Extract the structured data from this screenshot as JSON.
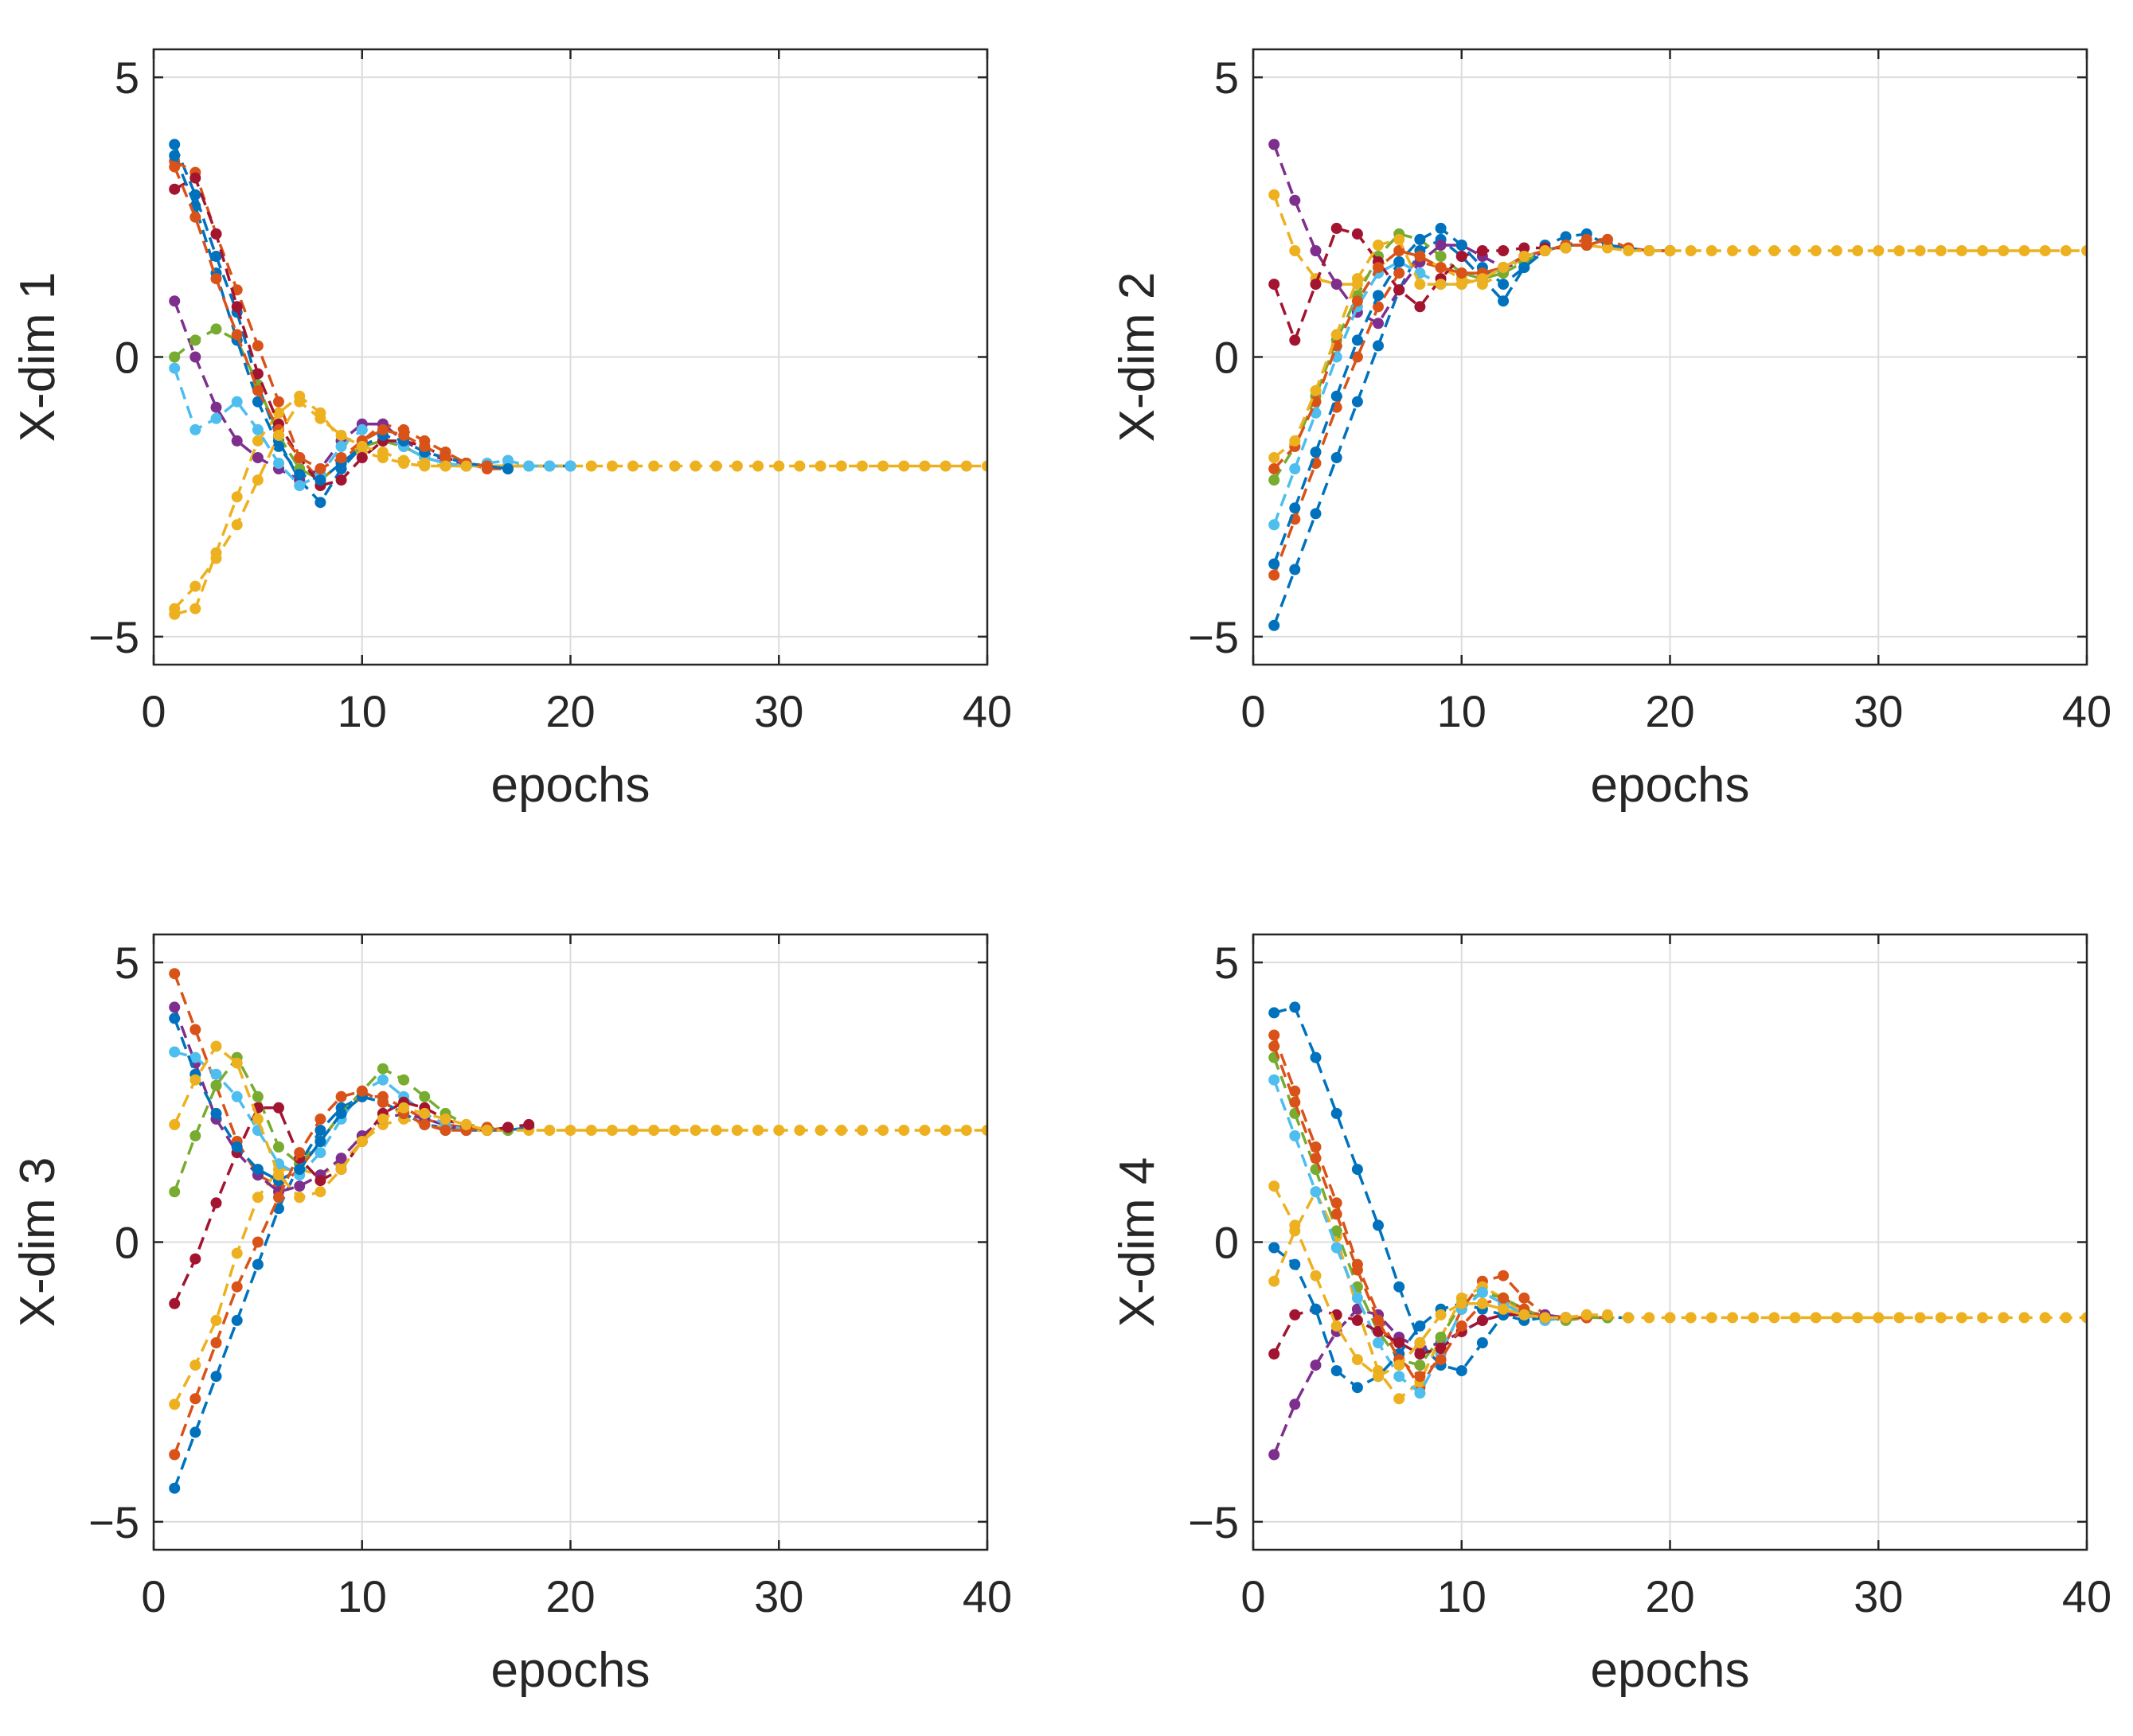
{
  "colors": {
    "axis": "#262626",
    "grid": "#dcdcdc",
    "series": [
      "#0072BD",
      "#D95319",
      "#EDB120",
      "#7E2F8E",
      "#77AC30",
      "#4DBEEE",
      "#A2142F",
      "#0072BD",
      "#D95319",
      "#EDB120"
    ]
  },
  "chart_data": [
    {
      "type": "line",
      "xlabel": "epochs",
      "ylabel": "X-dim 1",
      "xlim": [
        0,
        40
      ],
      "ylim": [
        -5.5,
        5.5
      ],
      "xticks": [
        0,
        10,
        20,
        30,
        40
      ],
      "yticks": [
        -5,
        0,
        5
      ],
      "ytick_labels": [
        "−5",
        "0",
        "5"
      ],
      "grid": true,
      "series": [
        {
          "values": [
            3.8,
            2.9,
            1.8,
            0.8,
            -0.5,
            -1.5,
            -2.2,
            -2.6,
            -2.0,
            -1.6,
            -1.5,
            -1.6,
            -1.8,
            -1.9,
            -1.95,
            -1.95,
            -1.95,
            -1.95,
            -1.95,
            -1.95
          ]
        },
        {
          "values": [
            3.5,
            3.3,
            2.2,
            1.2,
            0.2,
            -0.8,
            -1.8,
            -2.2,
            -1.9,
            -1.5,
            -1.2,
            -1.3,
            -1.5,
            -1.7,
            -1.9,
            -2.0,
            -2.0
          ]
        },
        {
          "values": [
            -4.6,
            -4.5,
            -3.5,
            -2.5,
            -1.5,
            -1.0,
            -0.7,
            -1.0,
            -1.5,
            -1.7,
            -1.8,
            -1.9,
            -1.95,
            -1.95,
            -1.95,
            -1.95,
            -1.95,
            -1.95,
            -1.95,
            -1.95,
            -1.95,
            -1.95,
            -1.95,
            -1.95,
            -1.95,
            -1.95,
            -1.95,
            -1.95,
            -1.95,
            -1.95,
            -1.95,
            -1.95,
            -1.95,
            -1.95,
            -1.95,
            -1.95,
            -1.95,
            -1.95,
            -1.95,
            -1.95
          ]
        },
        {
          "values": [
            1.0,
            0.0,
            -0.9,
            -1.5,
            -1.8,
            -2.0,
            -2.2,
            -2.0,
            -1.5,
            -1.2,
            -1.2,
            -1.5,
            -1.7,
            -1.85,
            -1.9,
            -1.95
          ]
        },
        {
          "values": [
            0.0,
            0.3,
            0.5,
            0.3,
            -0.5,
            -1.4,
            -2.0,
            -2.2,
            -1.9,
            -1.6,
            -1.5,
            -1.6,
            -1.8,
            -1.9,
            -1.95
          ]
        },
        {
          "values": [
            -0.2,
            -1.3,
            -1.1,
            -0.8,
            -1.3,
            -1.9,
            -2.3,
            -2.1,
            -1.6,
            -1.3,
            -1.4,
            -1.6,
            -1.8,
            -1.9,
            -1.95,
            -1.9,
            -1.85,
            -1.95,
            -1.95,
            -1.95
          ]
        },
        {
          "values": [
            3.0,
            3.2,
            2.2,
            0.9,
            -0.3,
            -1.2,
            -1.8,
            -2.3,
            -2.2,
            -1.8,
            -1.5,
            -1.5,
            -1.6,
            -1.8,
            -1.9
          ]
        },
        {
          "values": [
            3.6,
            2.7,
            1.5,
            0.3,
            -0.8,
            -1.6,
            -2.1,
            -2.2,
            -1.9,
            -1.6,
            -1.4,
            -1.5,
            -1.7,
            -1.8,
            -1.9,
            -1.95,
            -2.0
          ]
        },
        {
          "values": [
            3.4,
            2.5,
            1.4,
            0.4,
            -0.6,
            -1.3,
            -1.8,
            -2.0,
            -1.8,
            -1.5,
            -1.3,
            -1.4,
            -1.6,
            -1.8,
            -1.9,
            -1.95
          ]
        },
        {
          "values": [
            -4.5,
            -4.1,
            -3.6,
            -3.0,
            -2.2,
            -1.4,
            -0.8,
            -1.1,
            -1.4,
            -1.6,
            -1.7,
            -1.85,
            -1.9,
            -1.95,
            -1.95
          ]
        }
      ]
    },
    {
      "type": "line",
      "xlabel": "epochs",
      "ylabel": "X-dim 2",
      "xlim": [
        0,
        40
      ],
      "ylim": [
        -5.5,
        5.5
      ],
      "xticks": [
        0,
        10,
        20,
        30,
        40
      ],
      "yticks": [
        -5,
        0,
        5
      ],
      "ytick_labels": [
        "−5",
        "0",
        "5"
      ],
      "grid": true,
      "series": [
        {
          "values": [
            -4.8,
            -3.8,
            -2.8,
            -1.8,
            -0.8,
            0.2,
            1.2,
            1.9,
            2.1,
            1.8,
            1.4,
            1.0,
            1.6,
            2.0,
            2.15,
            2.2,
            2.0,
            1.95,
            1.9,
            1.9
          ]
        },
        {
          "values": [
            -3.9,
            -2.9,
            -1.9,
            -0.9,
            0.0,
            0.9,
            1.5,
            1.7,
            1.6,
            1.5,
            1.5,
            1.6,
            1.8,
            1.9,
            2.0,
            2.1,
            2.1,
            1.95,
            1.9,
            1.9
          ]
        },
        {
          "values": [
            2.9,
            1.9,
            1.4,
            1.3,
            1.3,
            1.6,
            1.9,
            1.8,
            1.6,
            1.4,
            1.3,
            1.5,
            1.8,
            1.9,
            2.0,
            2.0,
            1.95,
            1.9,
            1.9,
            1.9,
            1.9,
            1.9,
            1.9,
            1.9,
            1.9,
            1.9,
            1.9,
            1.9,
            1.9,
            1.9,
            1.9,
            1.9,
            1.9,
            1.9,
            1.9,
            1.9,
            1.9,
            1.9,
            1.9,
            1.9
          ]
        },
        {
          "values": [
            3.8,
            2.8,
            1.9,
            1.3,
            0.8,
            0.6,
            1.2,
            1.7,
            2.0,
            2.0,
            1.8,
            1.6,
            1.7,
            1.9,
            2.0,
            2.0
          ]
        },
        {
          "values": [
            -2.2,
            -1.6,
            -0.7,
            0.3,
            1.1,
            1.8,
            2.2,
            2.1,
            1.8,
            1.5,
            1.4,
            1.5,
            1.7,
            1.9,
            2.0
          ]
        },
        {
          "values": [
            -3.0,
            -2.0,
            -1.0,
            0.0,
            0.9,
            1.5,
            1.7,
            1.5,
            1.3,
            1.3,
            1.4,
            1.6,
            1.8,
            1.9,
            2.0
          ]
        },
        {
          "values": [
            1.3,
            0.3,
            1.3,
            2.3,
            2.2,
            1.7,
            1.2,
            0.9,
            1.4,
            1.8,
            1.9,
            1.9,
            1.95,
            1.95,
            1.95
          ]
        },
        {
          "values": [
            -3.7,
            -2.7,
            -1.7,
            -0.7,
            0.3,
            1.1,
            1.7,
            2.1,
            2.3,
            2.0,
            1.6,
            1.3,
            1.6,
            1.9,
            2.0,
            2.0
          ]
        },
        {
          "values": [
            -2.0,
            -1.6,
            -0.8,
            0.2,
            1.0,
            1.6,
            1.9,
            1.8,
            1.6,
            1.5,
            1.5,
            1.6,
            1.8,
            1.9,
            2.0,
            2.0,
            2.1
          ]
        },
        {
          "values": [
            -1.8,
            -1.5,
            -0.6,
            0.4,
            1.4,
            2.0,
            2.1,
            1.3,
            1.3,
            1.3,
            1.4,
            1.6,
            1.8,
            1.9,
            1.95
          ]
        }
      ]
    },
    {
      "type": "line",
      "xlabel": "epochs",
      "ylabel": "X-dim 3",
      "xlim": [
        0,
        40
      ],
      "ylim": [
        -5.5,
        5.5
      ],
      "xticks": [
        0,
        10,
        20,
        30,
        40
      ],
      "yticks": [
        -5,
        0,
        5
      ],
      "ytick_labels": [
        "−5",
        "0",
        "5"
      ],
      "grid": true,
      "series": [
        {
          "values": [
            -4.4,
            -3.4,
            -2.4,
            -1.4,
            -0.4,
            0.6,
            1.4,
            2.0,
            2.4,
            2.6,
            2.5,
            2.3,
            2.1,
            2.05,
            2.0,
            2.0,
            2.0,
            2.05
          ]
        },
        {
          "values": [
            4.8,
            3.8,
            2.8,
            1.8,
            1.2,
            1.0,
            1.3,
            1.8,
            2.3,
            2.6,
            2.6,
            2.4,
            2.2,
            2.1,
            2.05,
            2.0,
            2.05
          ]
        },
        {
          "values": [
            -2.9,
            -2.2,
            -1.4,
            -0.2,
            0.8,
            1.3,
            1.3,
            1.2,
            1.4,
            1.8,
            2.1,
            2.2,
            2.1,
            2.05,
            2.0,
            2.0,
            2.0,
            2.0,
            2.0,
            2.0,
            2.0,
            2.0,
            2.0,
            2.0,
            2.0,
            2.0,
            2.0,
            2.0,
            2.0,
            2.0,
            2.0,
            2.0,
            2.0,
            2.0,
            2.0,
            2.0,
            2.0,
            2.0,
            2.0,
            2.0
          ]
        },
        {
          "values": [
            4.2,
            3.2,
            2.2,
            1.6,
            1.2,
            0.9,
            1.0,
            1.2,
            1.5,
            1.9,
            2.2,
            2.3,
            2.2,
            2.1,
            2.0
          ]
        },
        {
          "values": [
            0.9,
            1.9,
            2.8,
            3.3,
            2.6,
            1.7,
            1.4,
            1.8,
            2.3,
            2.7,
            3.1,
            2.9,
            2.6,
            2.3,
            2.1,
            2.05,
            2.0
          ]
        },
        {
          "values": [
            3.4,
            3.3,
            3.0,
            2.6,
            2.0,
            1.4,
            1.2,
            1.6,
            2.2,
            2.7,
            2.9,
            2.6,
            2.3,
            2.1,
            2.0
          ]
        },
        {
          "values": [
            -1.1,
            -0.3,
            0.7,
            1.6,
            2.4,
            2.4,
            1.5,
            1.1,
            1.3,
            1.8,
            2.3,
            2.5,
            2.4,
            2.2,
            2.05,
            2.0,
            2.05,
            2.1
          ]
        },
        {
          "values": [
            4.0,
            3.0,
            2.3,
            1.7,
            1.3,
            1.1,
            1.3,
            1.8,
            2.3,
            2.6,
            2.5,
            2.3,
            2.1,
            2.0
          ]
        },
        {
          "values": [
            -3.8,
            -2.8,
            -1.8,
            -0.8,
            0.0,
            0.8,
            1.6,
            2.2,
            2.6,
            2.7,
            2.5,
            2.3,
            2.1,
            2.0,
            2.0,
            2.05
          ]
        },
        {
          "values": [
            2.1,
            2.9,
            3.5,
            3.2,
            2.2,
            1.2,
            0.8,
            0.9,
            1.3,
            1.8,
            2.2,
            2.4,
            2.3,
            2.2,
            2.1,
            2.0
          ]
        }
      ]
    },
    {
      "type": "line",
      "xlabel": "epochs",
      "ylabel": "X-dim 4",
      "xlim": [
        0,
        40
      ],
      "ylim": [
        -5.5,
        5.5
      ],
      "xticks": [
        0,
        10,
        20,
        30,
        40
      ],
      "yticks": [
        -5,
        0,
        5
      ],
      "ytick_labels": [
        "−5",
        "0",
        "5"
      ],
      "grid": true,
      "series": [
        {
          "values": [
            4.1,
            4.2,
            3.3,
            2.3,
            1.3,
            0.3,
            -0.8,
            -1.8,
            -2.2,
            -2.3,
            -1.8,
            -1.3,
            -1.3,
            -1.35,
            -1.35,
            -1.35,
            -1.35,
            -1.35
          ]
        },
        {
          "values": [
            3.7,
            2.7,
            1.7,
            0.7,
            -0.4,
            -1.3,
            -2.0,
            -2.6,
            -2.0,
            -1.2,
            -0.7,
            -0.6,
            -1.0,
            -1.3,
            -1.35,
            -1.35,
            -1.35
          ]
        },
        {
          "values": [
            -0.7,
            0.2,
            0.9,
            0.1,
            -1.2,
            -2.3,
            -2.8,
            -2.5,
            -1.7,
            -1.0,
            -0.8,
            -1.0,
            -1.3,
            -1.4,
            -1.35,
            -1.3,
            -1.35,
            -1.35,
            -1.35,
            -1.35,
            -1.35,
            -1.35,
            -1.35,
            -1.35,
            -1.35,
            -1.35,
            -1.35,
            -1.35,
            -1.35,
            -1.35,
            -1.35,
            -1.35,
            -1.35,
            -1.35,
            -1.35,
            -1.35,
            -1.35,
            -1.35,
            -1.35,
            -1.35
          ]
        },
        {
          "values": [
            -3.8,
            -2.9,
            -2.2,
            -1.6,
            -1.2,
            -1.3,
            -1.7,
            -1.9,
            -1.8,
            -1.6,
            -1.4,
            -1.3,
            -1.25,
            -1.3,
            -1.35,
            -1.35
          ]
        },
        {
          "values": [
            3.3,
            2.3,
            1.3,
            0.2,
            -0.8,
            -1.6,
            -2.1,
            -2.2,
            -1.7,
            -1.1,
            -0.9,
            -1.0,
            -1.2,
            -1.35,
            -1.4,
            -1.35,
            -1.35
          ]
        },
        {
          "values": [
            2.9,
            1.9,
            0.9,
            -0.1,
            -1.0,
            -1.8,
            -2.4,
            -2.7,
            -2.0,
            -1.2,
            -0.9,
            -1.1,
            -1.3,
            -1.4,
            -1.35
          ]
        },
        {
          "values": [
            -2.0,
            -1.3,
            -1.2,
            -1.3,
            -1.4,
            -1.6,
            -1.8,
            -2.0,
            -1.9,
            -1.6,
            -1.4,
            -1.3,
            -1.3,
            -1.35,
            -1.35
          ]
        },
        {
          "values": [
            -0.1,
            -0.4,
            -1.2,
            -2.3,
            -2.6,
            -2.4,
            -2.0,
            -1.5,
            -1.2,
            -1.1,
            -1.2,
            -1.3,
            -1.4,
            -1.35,
            -1.35
          ]
        },
        {
          "values": [
            3.5,
            2.5,
            1.5,
            0.5,
            -0.5,
            -1.4,
            -2.1,
            -2.4,
            -2.1,
            -1.5,
            -1.1,
            -1.0,
            -1.2,
            -1.35,
            -1.35,
            -1.35
          ]
        },
        {
          "values": [
            1.0,
            0.3,
            -0.6,
            -1.5,
            -2.1,
            -2.4,
            -2.2,
            -1.8,
            -1.3,
            -1.1,
            -1.1,
            -1.2,
            -1.3,
            -1.35,
            -1.35,
            -1.3,
            -1.3
          ]
        }
      ]
    }
  ]
}
